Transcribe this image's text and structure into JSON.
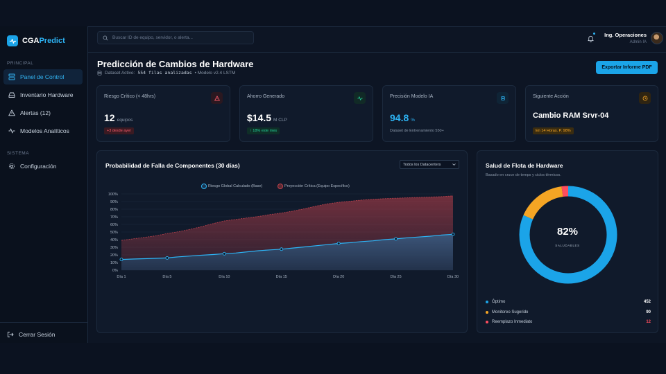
{
  "brand": {
    "name_a": "CGA",
    "name_b": "Predict",
    "accent": "#1ba4e8"
  },
  "sidebar": {
    "section_main": "PRINCIPAL",
    "section_system": "SISTEMA",
    "items": [
      {
        "label": "Panel de Control",
        "icon": "dashboard-icon",
        "active": true
      },
      {
        "label": "Inventario Hardware",
        "icon": "hardware-icon"
      },
      {
        "label": "Alertas (12)",
        "icon": "warning-icon"
      },
      {
        "label": "Modelos Analíticos",
        "icon": "pulse-icon"
      }
    ],
    "settings_label": "Configuración",
    "logout_label": "Cerrar Sesión"
  },
  "topbar": {
    "search_placeholder": "Buscar ID de equipo, servidor, o alerta...",
    "user_name": "Ing. Operaciones",
    "user_role": "Admin IA"
  },
  "header": {
    "title": "Predicción de Cambios de Hardware",
    "dataset_label": "Dataset Activo:",
    "dataset_value": "554 filas analizadas",
    "model_label": "• Modelo v2.4 LSTM",
    "export_label": "Exportar Informe PDF"
  },
  "kpis": [
    {
      "label": "Riesgo Crítico (< 48hrs)",
      "value": "12",
      "unit": "equipos",
      "badge": "+3 desde ayer",
      "badge_color": "#ff5c6c",
      "icon": "alert-triangle-icon",
      "icon_color": "#ff5c6c"
    },
    {
      "label": "Ahorro Generado",
      "value": "$14.5",
      "unit": "M CLP",
      "badge": "↑ 18% este mes",
      "badge_color": "#22d39a",
      "icon": "activity-icon",
      "icon_color": "#22d39a"
    },
    {
      "label": "Precisión Modelo IA",
      "value": "94.8",
      "unit": "%",
      "note": "Dataset de Entrenamiento 550+",
      "icon": "cpu-icon",
      "icon_color": "#2db4f5"
    },
    {
      "label": "Siguiente Acción",
      "value": "Cambio RAM Srvr-04",
      "badge": "En 14 Horas. P. 98%",
      "badge_color": "#f5a524",
      "icon": "clock-icon",
      "icon_color": "#f5a524"
    }
  ],
  "failure_chart": {
    "filter_label": "Todos los Datacenters",
    "chart_data": {
      "type": "area",
      "title": "Probabilidad de Falla de Componentes (30 días)",
      "x": [
        1,
        2,
        3,
        4,
        5,
        6,
        7,
        8,
        9,
        10,
        11,
        12,
        13,
        14,
        15,
        16,
        17,
        18,
        19,
        20,
        21,
        22,
        23,
        24,
        25,
        26,
        27,
        28,
        29,
        30
      ],
      "tick_labels": [
        "Día 1",
        "Día 5",
        "Día 10",
        "Día 15",
        "Día 20",
        "Día 25",
        "Día 30"
      ],
      "tick_positions": [
        1,
        5,
        10,
        15,
        20,
        25,
        30
      ],
      "ylim": [
        0,
        100
      ],
      "y_ticks": [
        "0%",
        "10%",
        "20%",
        "30%",
        "40%",
        "50%",
        "60%",
        "70%",
        "80%",
        "90%",
        "100%"
      ],
      "legend_position": "top",
      "series": [
        {
          "name": "Riesgo Global Calculado (Base)",
          "color": "#2db4f5",
          "values": [
            14,
            14.5,
            15,
            15.5,
            16,
            17.5,
            18.5,
            19.5,
            20.5,
            21.5,
            22.5,
            24,
            25.5,
            26.5,
            27.5,
            29,
            30.5,
            32,
            33.5,
            35,
            36,
            37.5,
            38.5,
            40,
            41,
            42.5,
            43.5,
            44.5,
            46,
            47
          ],
          "markers": [
            1,
            5,
            10,
            15,
            20,
            25,
            30
          ]
        },
        {
          "name": "Proyección Crítica (Equipo Específico)",
          "color": "#c0414c",
          "values": [
            39,
            41,
            43,
            45,
            48,
            50.5,
            53.5,
            57,
            61,
            64.5,
            66.5,
            68.5,
            70.5,
            73,
            75,
            77.5,
            80.5,
            84,
            87,
            89,
            90.5,
            92,
            93,
            93.8,
            94.5,
            95,
            95.5,
            96,
            96.5,
            97.5
          ]
        }
      ]
    }
  },
  "fleet_chart": {
    "subtitle": "Basado en cruce de temps y ciclos térmicos.",
    "center_value": "82%",
    "center_label": "SALUDABLES",
    "chart_data": {
      "type": "pie",
      "title": "Salud de Flota de Hardware",
      "categories": [
        "Óptimo",
        "Monitoreo Sugerido",
        "Reemplazo Inmediato"
      ],
      "values": [
        452,
        90,
        12
      ],
      "value_labels": [
        "452",
        "90",
        "12"
      ],
      "colors": [
        "#1ba4e8",
        "#f5a524",
        "#ff4d5e"
      ]
    }
  }
}
